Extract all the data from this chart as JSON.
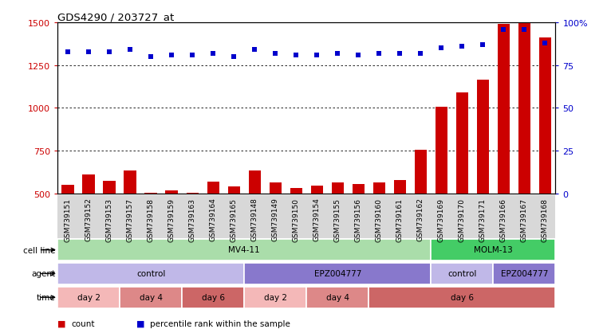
{
  "title": "GDS4290 / 203727_at",
  "samples": [
    "GSM739151",
    "GSM739152",
    "GSM739153",
    "GSM739157",
    "GSM739158",
    "GSM739159",
    "GSM739163",
    "GSM739164",
    "GSM739165",
    "GSM739148",
    "GSM739149",
    "GSM739150",
    "GSM739154",
    "GSM739155",
    "GSM739156",
    "GSM739160",
    "GSM739161",
    "GSM739162",
    "GSM739169",
    "GSM739170",
    "GSM739171",
    "GSM739166",
    "GSM739167",
    "GSM739168"
  ],
  "counts": [
    550,
    610,
    575,
    635,
    505,
    520,
    505,
    570,
    540,
    635,
    565,
    530,
    545,
    565,
    555,
    565,
    580,
    755,
    1005,
    1090,
    1165,
    1490,
    1495,
    1410
  ],
  "percentile_ranks": [
    83,
    83,
    83,
    84,
    80,
    81,
    81,
    82,
    80,
    84,
    82,
    81,
    81,
    82,
    81,
    82,
    82,
    82,
    85,
    86,
    87,
    96,
    96,
    88
  ],
  "bar_color": "#cc0000",
  "dot_color": "#0000cc",
  "ylim_left": [
    500,
    1500
  ],
  "ylim_right": [
    0,
    100
  ],
  "yticks_left": [
    500,
    750,
    1000,
    1250,
    1500
  ],
  "yticks_right": [
    0,
    25,
    50,
    75,
    100
  ],
  "ytick_right_labels": [
    "0",
    "25",
    "50",
    "75",
    "100%"
  ],
  "grid_values": [
    750,
    1000,
    1250
  ],
  "cell_line_data": [
    {
      "label": "MV4-11",
      "start": 0,
      "end": 18,
      "color": "#aaddaa"
    },
    {
      "label": "MOLM-13",
      "start": 18,
      "end": 24,
      "color": "#44cc66"
    }
  ],
  "agent_data": [
    {
      "label": "control",
      "start": 0,
      "end": 9,
      "color": "#c0b8e8"
    },
    {
      "label": "EPZ004777",
      "start": 9,
      "end": 18,
      "color": "#8878cc"
    },
    {
      "label": "control",
      "start": 18,
      "end": 21,
      "color": "#c0b8e8"
    },
    {
      "label": "EPZ004777",
      "start": 21,
      "end": 24,
      "color": "#8878cc"
    }
  ],
  "time_data": [
    {
      "label": "day 2",
      "start": 0,
      "end": 3,
      "color": "#f4b8b8"
    },
    {
      "label": "day 4",
      "start": 3,
      "end": 6,
      "color": "#dd8888"
    },
    {
      "label": "day 6",
      "start": 6,
      "end": 9,
      "color": "#cc6666"
    },
    {
      "label": "day 2",
      "start": 9,
      "end": 12,
      "color": "#f4b8b8"
    },
    {
      "label": "day 4",
      "start": 12,
      "end": 15,
      "color": "#dd8888"
    },
    {
      "label": "day 6",
      "start": 15,
      "end": 24,
      "color": "#cc6666"
    }
  ],
  "legend_items": [
    {
      "label": "count",
      "color": "#cc0000",
      "marker": "s"
    },
    {
      "label": "percentile rank within the sample",
      "color": "#0000cc",
      "marker": "s"
    }
  ],
  "bg_color": "#ffffff",
  "ticklabel_bg": "#d8d8d8"
}
